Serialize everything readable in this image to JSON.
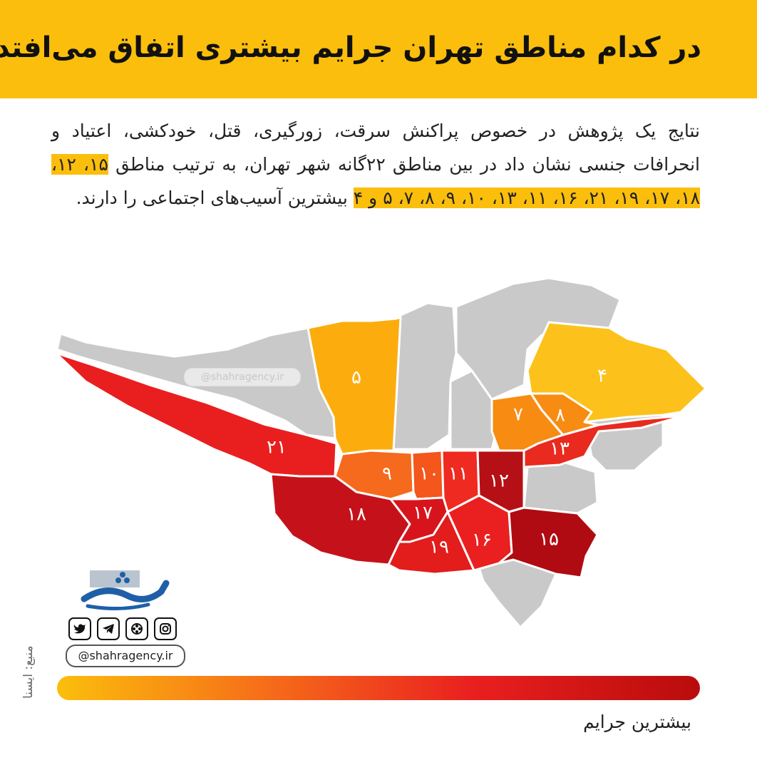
{
  "title": "در کدام مناطق تهران جرایم بیشتری اتفاق می‌افتد؟",
  "intro": {
    "before": "نتایج یک پژوهش در خصوص پراکنش سرقت، زورگیری، قتل، خودکشی، اعتیاد و انحرافات جنسی نشان داد در بین مناطق ۲۲گانه شهر تهران، به ترتیب مناطق ",
    "highlight": "۱۵، ۱۲، ۱۸، ۱۷، ۱۹، ۲۱، ۱۶، ۱۱، ۱۳، ۱۰، ۹، ۸، ۷، ۵ و ۴",
    "after": " بیشترین آسیب‌های اجتماعی را دارند."
  },
  "map": {
    "ranking_order": [
      15,
      12,
      18,
      17,
      19,
      21,
      16,
      11,
      13,
      10,
      9,
      8,
      7,
      5,
      4
    ],
    "regions": [
      {
        "label": "۲۱",
        "color": "#e91f1f"
      },
      {
        "label": "۵",
        "color": "#fcad0d"
      },
      {
        "label": "۴",
        "color": "#fcc21b"
      },
      {
        "label": "۷",
        "color": "#f88b11"
      },
      {
        "label": "۸",
        "color": "#f88b11"
      },
      {
        "label": "۱۳",
        "color": "#e92a1f"
      },
      {
        "label": "۹",
        "color": "#f56a1c"
      },
      {
        "label": "۱۰",
        "color": "#f4561c"
      },
      {
        "label": "۱۱",
        "color": "#ef2a20"
      },
      {
        "label": "۱۲",
        "color": "#b51015"
      },
      {
        "label": "۱۸",
        "color": "#c5121a"
      },
      {
        "label": "۱۷",
        "color": "#d7141b"
      },
      {
        "label": "۱۹",
        "color": "#e31c1c"
      },
      {
        "label": "۱۶",
        "color": "#ea2020"
      },
      {
        "label": "۱۵",
        "color": "#b00b12"
      }
    ],
    "other_regions_color": "#c9c9c9"
  },
  "watermark": "@shahragency.ir",
  "branding": {
    "handle": "@shahragency.ir",
    "social_icons": [
      "twitter-icon",
      "telegram-icon",
      "aparat-icon",
      "instagram-icon"
    ]
  },
  "source": "منبع: ایسنا",
  "legend": {
    "label": "بیشترین جرایم",
    "color_low": "#fbbe0c",
    "color_high": "#b90c0c"
  }
}
